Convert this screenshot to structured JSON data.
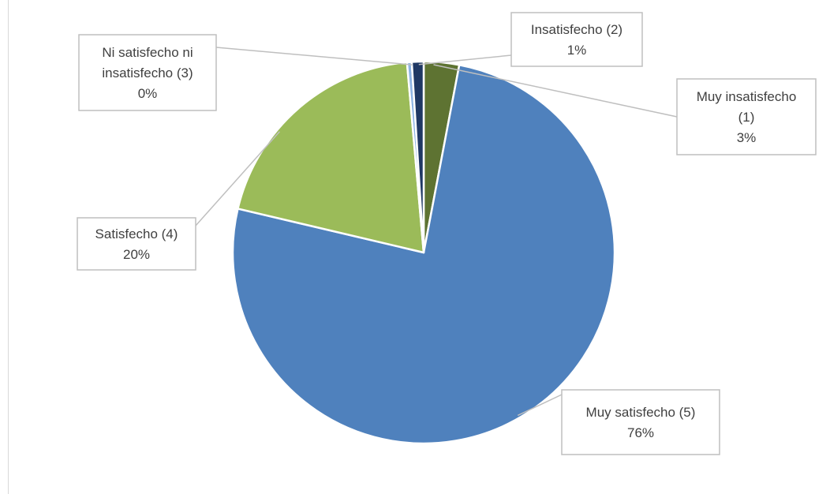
{
  "chart_data": {
    "type": "pie",
    "title": "",
    "start_angle_deg": 0,
    "slices": [
      {
        "label": "Muy insatisfecho (1)",
        "value": 3,
        "display": "3%",
        "color": "#5e7332"
      },
      {
        "label": "Muy satisfecho (5)",
        "value": 76,
        "display": "76%",
        "color": "#4f81bd"
      },
      {
        "label": "Satisfecho (4)",
        "value": 20,
        "display": "20%",
        "color": "#9bbb59"
      },
      {
        "label": "Ni satisfecho ni insatisfecho (3)",
        "value": 0.4,
        "display": "0%",
        "color": "#8eb4e3"
      },
      {
        "label": "Insatisfecho (2)",
        "value": 1,
        "display": "1%",
        "color": "#1f3864"
      }
    ],
    "data_labels": [
      {
        "lines": [
          "Muy insatisfecho",
          "(1)",
          "3%"
        ]
      },
      {
        "lines": [
          "Muy satisfecho (5)",
          "76%"
        ]
      },
      {
        "lines": [
          "Satisfecho (4)",
          "20%"
        ]
      },
      {
        "lines": [
          "Ni satisfecho ni",
          "insatisfecho (3)",
          "0%"
        ]
      },
      {
        "lines": [
          "Insatisfecho (2)",
          "1%"
        ]
      }
    ]
  }
}
